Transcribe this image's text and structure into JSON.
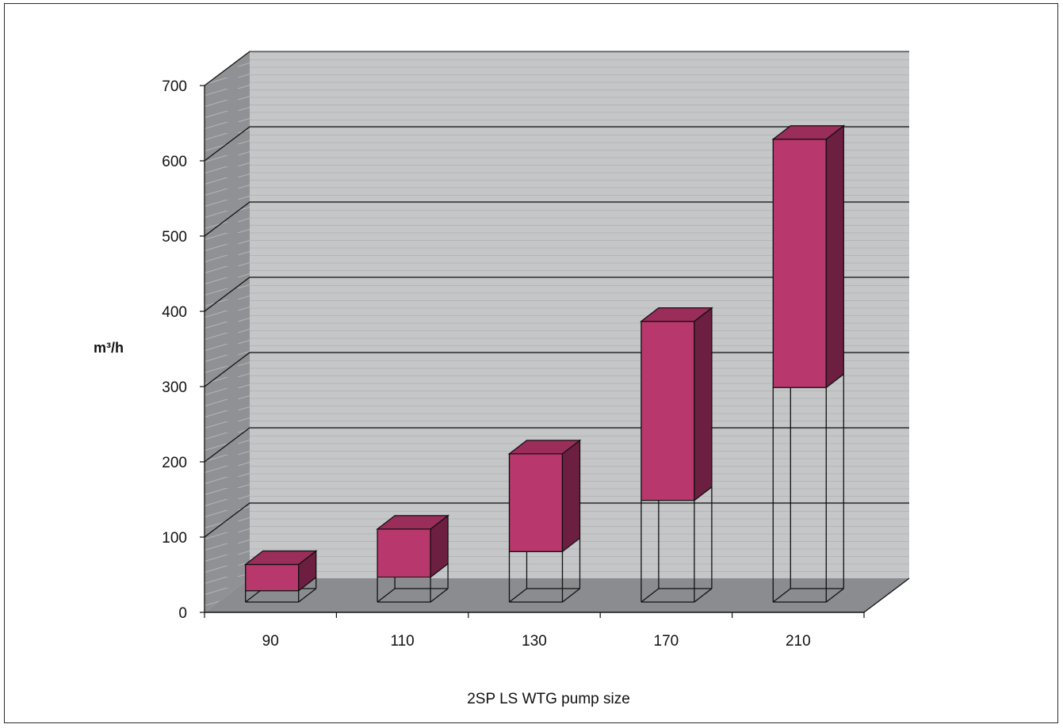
{
  "chart_data": {
    "type": "bar",
    "subtype": "3d-floating-range",
    "title": "",
    "xlabel": "2SP LS WTG pump size",
    "ylabel": "m³/h",
    "ylim": [
      0,
      700
    ],
    "yticks": [
      "0",
      "100",
      "200",
      "300",
      "400",
      "500",
      "600",
      "700"
    ],
    "categories": [
      "90",
      "110",
      "130",
      "170",
      "210"
    ],
    "series": [
      {
        "ranges": [
          [
            15,
            50
          ],
          [
            33,
            97
          ],
          [
            67,
            197
          ],
          [
            135,
            373
          ],
          [
            285,
            615
          ]
        ]
      }
    ],
    "grid": true,
    "legend": "none",
    "colors": {
      "bar_front": "#b8376c",
      "bar_top": "#9b2d5a",
      "bar_side": "#6d1f42",
      "wall": "#c4c6c8",
      "side_wall": "#8f9194",
      "floor": "#8a8c8f",
      "frame": "#2a2a2a"
    }
  }
}
